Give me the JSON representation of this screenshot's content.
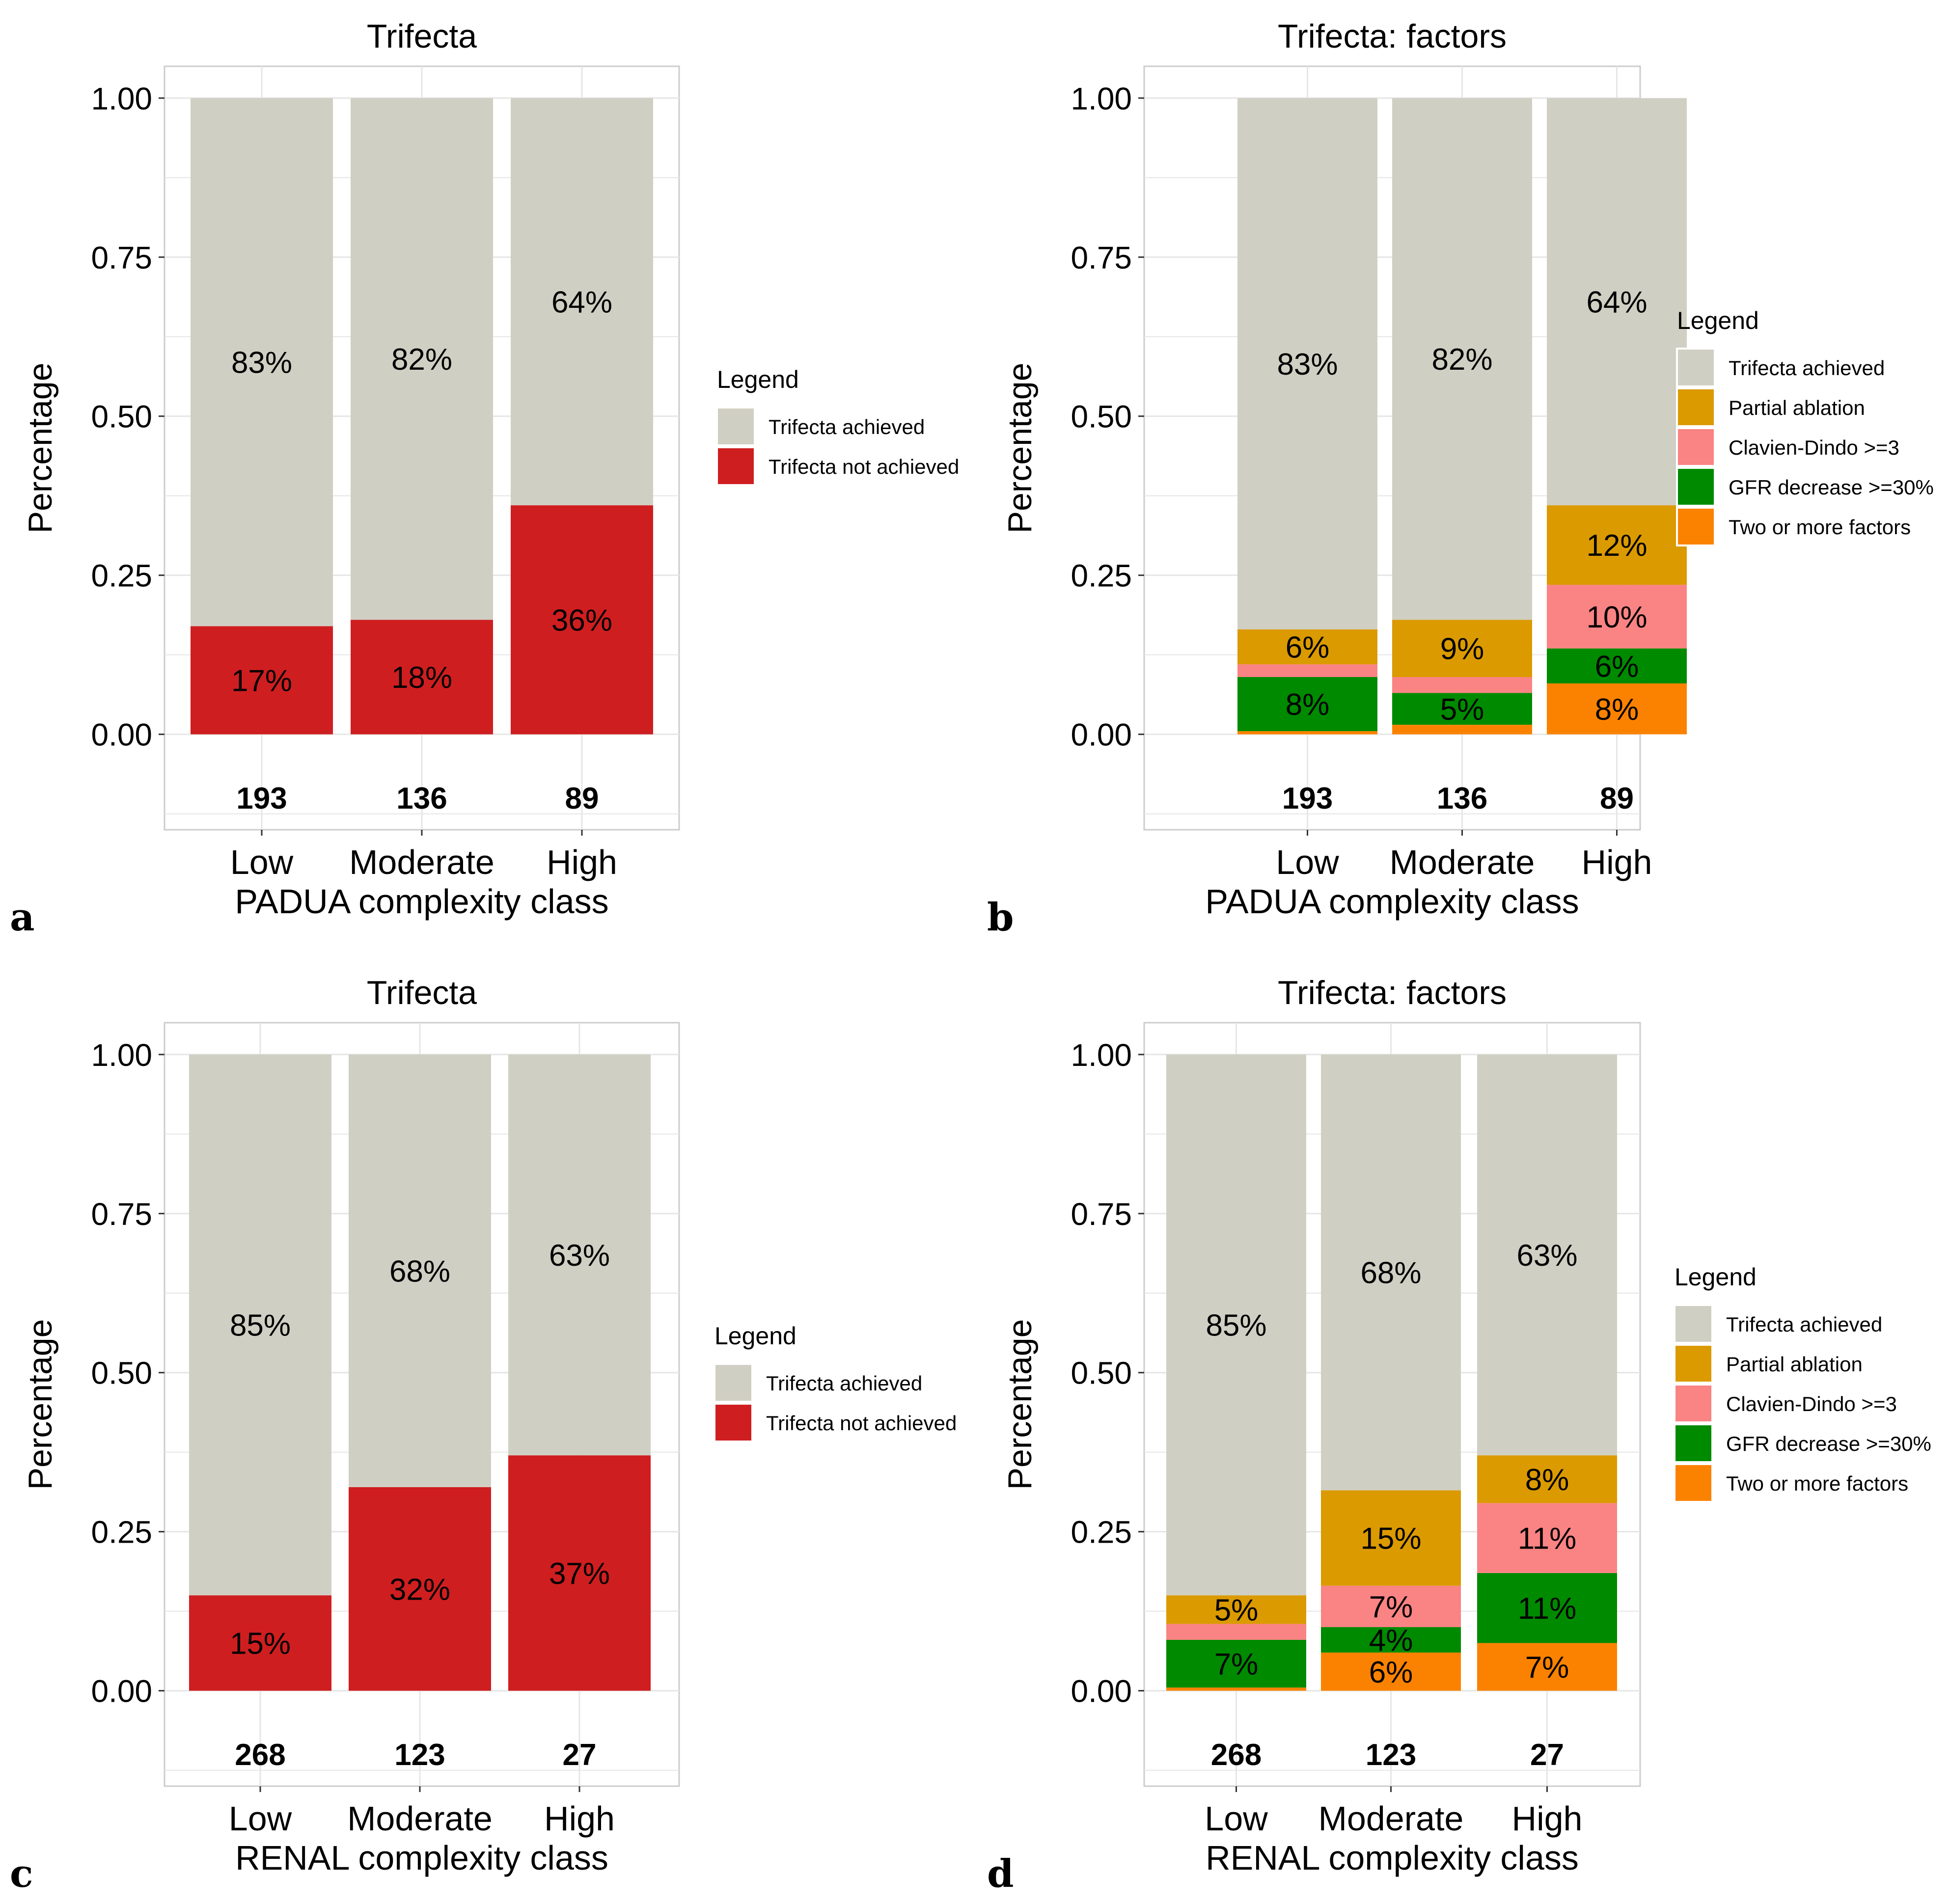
{
  "colors": {
    "achieved": "#D0CFC3",
    "not_achieved": "#CF1E20",
    "partial_ablation": "#DB9A00",
    "clavien_dindo": "#FA8383",
    "gfr_decrease": "#008A00",
    "two_or_more": "#FB8200"
  },
  "chart_data": [
    {
      "panel": "a",
      "type": "bar",
      "stacked": true,
      "title": "Trifecta",
      "xlabel": "PADUA complexity class",
      "ylabel": "Percentage",
      "ylim": [
        -0.15,
        1.05
      ],
      "yticks": [
        "0.00",
        "0.25",
        "0.50",
        "0.75",
        "1.00"
      ],
      "categories": [
        "Low",
        "Moderate",
        "High"
      ],
      "counts": [
        "193",
        "136",
        "89"
      ],
      "legend_title": "Legend",
      "series": [
        {
          "name": "Trifecta not achieved",
          "color_key": "not_achieved",
          "values": [
            0.17,
            0.18,
            0.36
          ],
          "labels": [
            "17%",
            "18%",
            "36%"
          ]
        },
        {
          "name": "Trifecta achieved",
          "color_key": "achieved",
          "values": [
            0.83,
            0.82,
            0.64
          ],
          "labels": [
            "83%",
            "82%",
            "64%"
          ]
        }
      ],
      "legend": [
        {
          "label": "Trifecta achieved",
          "color_key": "achieved"
        },
        {
          "label": "Trifecta not achieved",
          "color_key": "not_achieved"
        }
      ]
    },
    {
      "panel": "b",
      "type": "bar",
      "stacked": true,
      "title": "Trifecta: factors",
      "xlabel": "PADUA complexity class",
      "ylabel": "Percentage",
      "ylim": [
        -0.15,
        1.05
      ],
      "yticks": [
        "0.00",
        "0.25",
        "0.50",
        "0.75",
        "1.00"
      ],
      "categories": [
        "Low",
        "Moderate",
        "High"
      ],
      "counts": [
        "193",
        "136",
        "89"
      ],
      "legend_title": "Legend",
      "series": [
        {
          "name": "Two or more factors",
          "color_key": "two_or_more",
          "values": [
            0.005,
            0.015,
            0.08
          ],
          "labels": [
            "",
            "",
            "8%"
          ]
        },
        {
          "name": "GFR decrease >=30%",
          "color_key": "gfr_decrease",
          "values": [
            0.085,
            0.05,
            0.055
          ],
          "labels": [
            "8%",
            "5%",
            "6%"
          ]
        },
        {
          "name": "Clavien-Dindo >=3",
          "color_key": "clavien_dindo",
          "values": [
            0.02,
            0.025,
            0.1
          ],
          "labels": [
            "",
            "",
            "10%"
          ]
        },
        {
          "name": "Partial ablation",
          "color_key": "partial_ablation",
          "values": [
            0.055,
            0.09,
            0.125
          ],
          "labels": [
            "6%",
            "9%",
            "12%"
          ]
        },
        {
          "name": "Trifecta achieved",
          "color_key": "achieved",
          "values": [
            0.835,
            0.82,
            0.64
          ],
          "labels": [
            "83%",
            "82%",
            "64%"
          ]
        }
      ],
      "legend": [
        {
          "label": "Trifecta achieved",
          "color_key": "achieved"
        },
        {
          "label": "Partial ablation",
          "color_key": "partial_ablation"
        },
        {
          "label": "Clavien-Dindo >=3",
          "color_key": "clavien_dindo"
        },
        {
          "label": "GFR decrease >=30%",
          "color_key": "gfr_decrease"
        },
        {
          "label": "Two or more factors",
          "color_key": "two_or_more"
        }
      ]
    },
    {
      "panel": "c",
      "type": "bar",
      "stacked": true,
      "title": "Trifecta",
      "xlabel": "RENAL complexity class",
      "ylabel": "Percentage",
      "ylim": [
        -0.15,
        1.05
      ],
      "yticks": [
        "0.00",
        "0.25",
        "0.50",
        "0.75",
        "1.00"
      ],
      "categories": [
        "Low",
        "Moderate",
        "High"
      ],
      "counts": [
        "268",
        "123",
        "27"
      ],
      "legend_title": "Legend",
      "series": [
        {
          "name": "Trifecta not achieved",
          "color_key": "not_achieved",
          "values": [
            0.15,
            0.32,
            0.37
          ],
          "labels": [
            "15%",
            "32%",
            "37%"
          ]
        },
        {
          "name": "Trifecta achieved",
          "color_key": "achieved",
          "values": [
            0.85,
            0.68,
            0.63
          ],
          "labels": [
            "85%",
            "68%",
            "63%"
          ]
        }
      ],
      "legend": [
        {
          "label": "Trifecta achieved",
          "color_key": "achieved"
        },
        {
          "label": "Trifecta not achieved",
          "color_key": "not_achieved"
        }
      ]
    },
    {
      "panel": "d",
      "type": "bar",
      "stacked": true,
      "title": "Trifecta: factors",
      "xlabel": "RENAL complexity class",
      "ylabel": "Percentage",
      "ylim": [
        -0.15,
        1.05
      ],
      "yticks": [
        "0.00",
        "0.25",
        "0.50",
        "0.75",
        "1.00"
      ],
      "categories": [
        "Low",
        "Moderate",
        "High"
      ],
      "counts": [
        "268",
        "123",
        "27"
      ],
      "legend_title": "Legend",
      "series": [
        {
          "name": "Two or more factors",
          "color_key": "two_or_more",
          "values": [
            0.005,
            0.06,
            0.075
          ],
          "labels": [
            "",
            "6%",
            "7%"
          ]
        },
        {
          "name": "GFR decrease >=30%",
          "color_key": "gfr_decrease",
          "values": [
            0.075,
            0.04,
            0.11
          ],
          "labels": [
            "7%",
            "4%",
            "11%"
          ]
        },
        {
          "name": "Clavien-Dindo >=3",
          "color_key": "clavien_dindo",
          "values": [
            0.025,
            0.065,
            0.11
          ],
          "labels": [
            "",
            "7%",
            "11%"
          ]
        },
        {
          "name": "Partial ablation",
          "color_key": "partial_ablation",
          "values": [
            0.045,
            0.15,
            0.075
          ],
          "labels": [
            "5%",
            "15%",
            "8%"
          ]
        },
        {
          "name": "Trifecta achieved",
          "color_key": "achieved",
          "values": [
            0.85,
            0.685,
            0.63
          ],
          "labels": [
            "85%",
            "68%",
            "63%"
          ]
        }
      ],
      "legend": [
        {
          "label": "Trifecta achieved",
          "color_key": "achieved"
        },
        {
          "label": "Partial ablation",
          "color_key": "partial_ablation"
        },
        {
          "label": "Clavien-Dindo >=3",
          "color_key": "clavien_dindo"
        },
        {
          "label": "GFR decrease >=30%",
          "color_key": "gfr_decrease"
        },
        {
          "label": "Two or more factors",
          "color_key": "two_or_more"
        }
      ]
    }
  ]
}
